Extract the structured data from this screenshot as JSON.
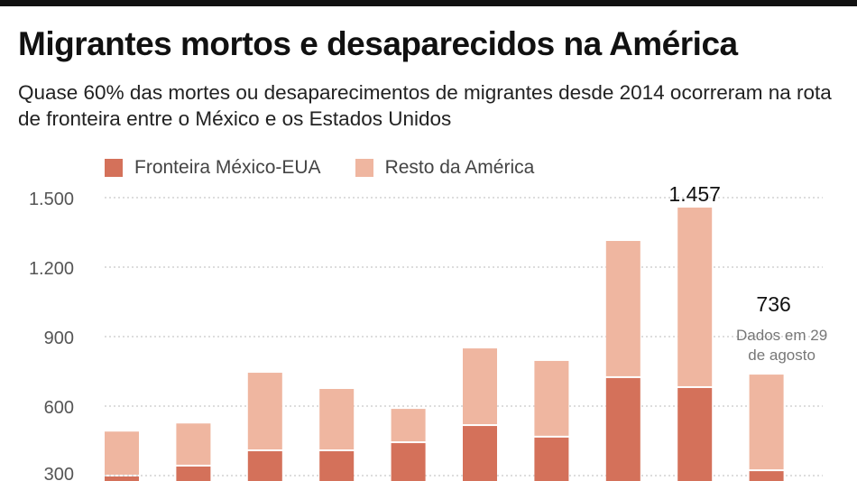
{
  "title": "Migrantes mortos e desaparecidos na América",
  "subtitle": "Quase 60% das mortes ou desaparecimentos de migrantes desde 2014 ocorreram na rota de fronteira entre o México e os Estados Unidos",
  "chart_data": {
    "type": "bar",
    "stacked": true,
    "title": "Migrantes mortos e desaparecidos na América",
    "ylim": [
      0,
      1500
    ],
    "yticks": [
      300,
      600,
      900,
      1200,
      1500
    ],
    "ytick_labels": [
      "300",
      "600",
      "900",
      "1.200",
      "1.500"
    ],
    "grid": true,
    "legend_position": "top-left",
    "series": [
      {
        "name": "Fronteira México-EUA",
        "color": "#d4715a",
        "values": [
          300,
          343,
          409,
          409,
          444,
          518,
          468,
          725,
          682,
          323
        ]
      },
      {
        "name": "Resto da América",
        "color": "#efb6a0",
        "values": [
          190,
          182,
          335,
          265,
          144,
          331,
          327,
          588,
          775,
          413
        ]
      }
    ],
    "totals": [
      490,
      525,
      744,
      674,
      588,
      849,
      795,
      1313,
      1457,
      736
    ],
    "annotations": [
      {
        "bar_index": 8,
        "text": "1.457"
      },
      {
        "bar_index": 9,
        "text": "736",
        "note": "Dados em 29 de agosto"
      }
    ]
  }
}
